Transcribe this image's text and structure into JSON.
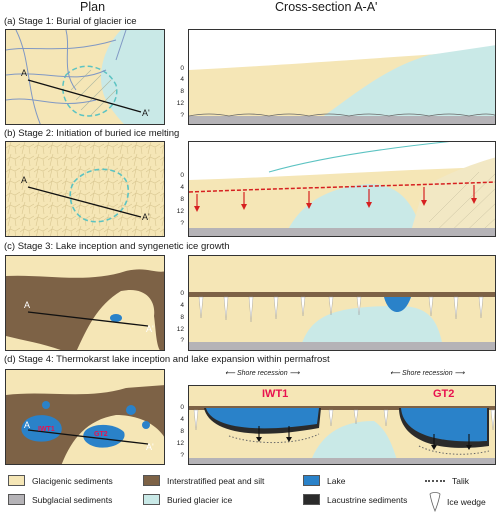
{
  "headers": {
    "plan": "Plan",
    "cross_section": "Cross-section A-A'"
  },
  "stages": [
    {
      "letter": "(a)",
      "title": "Stage 1: Burial of glacier ice"
    },
    {
      "letter": "(b)",
      "title": "Stage 2: Initiation of buried ice melting"
    },
    {
      "letter": "(c)",
      "title": "Stage 3: Lake inception and syngenetic ice growth"
    },
    {
      "letter": "(d)",
      "title": "Stage 4: Thermokarst lake inception and lake expansion within permafrost"
    }
  ],
  "section_labels": {
    "a": "A",
    "a_prime": "A'"
  },
  "depth_ticks": [
    "0",
    "4",
    "8",
    "12",
    "?"
  ],
  "stage4": {
    "shore_recession": "Shore recession",
    "lakes": [
      "IWT1",
      "GT2"
    ]
  },
  "legend": [
    {
      "label": "Glacigenic sediments",
      "color": "#f5e6b6"
    },
    {
      "label": "Interstratified peat and silt",
      "color": "#7d6246"
    },
    {
      "label": "Lake",
      "color": "#2a82c9"
    },
    {
      "label": "Talik",
      "symbol": "dots"
    },
    {
      "label": "Subglacial sediments",
      "color": "#b5b3b7"
    },
    {
      "label": "Buried glacier ice",
      "color": "#c9e9e7"
    },
    {
      "label": "Lacustrine sediments",
      "color": "#2b2b2b"
    },
    {
      "label": "Ice wedge",
      "symbol": "wedge"
    }
  ],
  "colors": {
    "glacigenic": "#f5e6b6",
    "peat": "#7d6246",
    "lake": "#2a82c9",
    "subglacial": "#b5b3b7",
    "ice": "#c9e9e7",
    "lacustrine": "#2b2b2b",
    "thaw_front": "#d62020",
    "accent": "#e8114f"
  }
}
